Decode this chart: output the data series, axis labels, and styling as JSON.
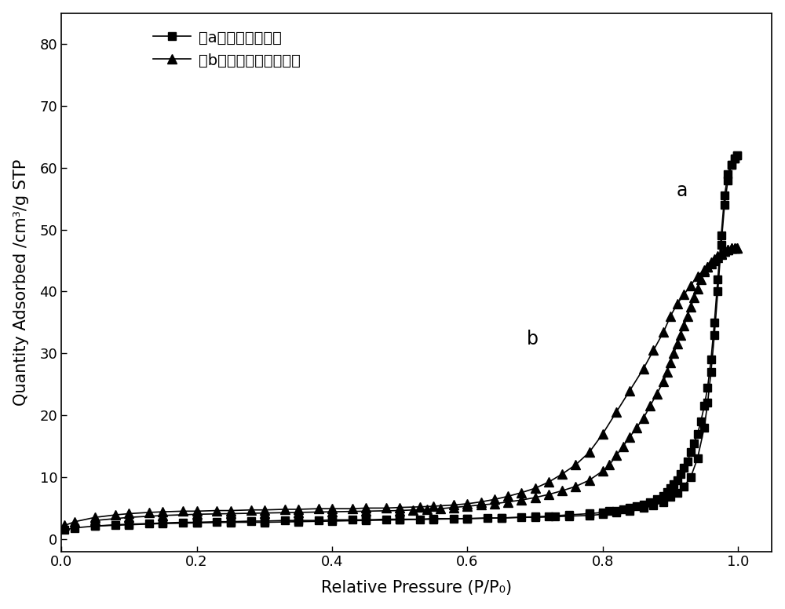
{
  "xlabel": "Relative Pressure (P/P₀)",
  "ylabel": "Quantity Adsorbed /cm³/g STP",
  "xlim": [
    0.0,
    1.05
  ],
  "ylim": [
    -2,
    85
  ],
  "xticks": [
    0.0,
    0.2,
    0.4,
    0.6,
    0.8,
    1.0
  ],
  "yticks": [
    0,
    10,
    20,
    30,
    40,
    50,
    60,
    70,
    80
  ],
  "legend_a": "（a）石墨相氮化碳",
  "legend_b": "（b）多孔石墨相氮化碳",
  "label_a": "a",
  "label_b": "b",
  "color": "#000000",
  "series_a_ads_x": [
    0.005,
    0.02,
    0.05,
    0.08,
    0.1,
    0.13,
    0.15,
    0.18,
    0.2,
    0.23,
    0.25,
    0.28,
    0.3,
    0.33,
    0.35,
    0.38,
    0.4,
    0.43,
    0.45,
    0.48,
    0.5,
    0.53,
    0.55,
    0.58,
    0.6,
    0.63,
    0.65,
    0.68,
    0.7,
    0.73,
    0.75,
    0.78,
    0.8,
    0.82,
    0.84,
    0.86,
    0.875,
    0.89,
    0.9,
    0.91,
    0.92,
    0.93,
    0.94,
    0.95,
    0.955,
    0.96,
    0.965,
    0.97,
    0.975,
    0.98,
    0.985,
    0.99,
    0.995,
    0.998
  ],
  "series_a_ads_y": [
    1.5,
    1.8,
    2.1,
    2.3,
    2.4,
    2.5,
    2.6,
    2.7,
    2.7,
    2.8,
    2.8,
    2.9,
    2.9,
    3.0,
    3.0,
    3.0,
    3.1,
    3.1,
    3.1,
    3.2,
    3.2,
    3.2,
    3.3,
    3.3,
    3.3,
    3.4,
    3.4,
    3.5,
    3.5,
    3.6,
    3.7,
    3.8,
    4.0,
    4.3,
    4.6,
    5.0,
    5.4,
    6.0,
    6.8,
    7.5,
    8.5,
    10.0,
    13.0,
    18.0,
    22.0,
    27.0,
    33.0,
    40.0,
    47.5,
    54.0,
    58.0,
    60.5,
    61.5,
    62.0
  ],
  "series_a_des_x": [
    0.998,
    0.995,
    0.99,
    0.985,
    0.98,
    0.975,
    0.97,
    0.965,
    0.96,
    0.955,
    0.95,
    0.945,
    0.94,
    0.935,
    0.93,
    0.925,
    0.92,
    0.915,
    0.91,
    0.905,
    0.9,
    0.895,
    0.89,
    0.88,
    0.87,
    0.86,
    0.85,
    0.84,
    0.83,
    0.82,
    0.81,
    0.8,
    0.78,
    0.75,
    0.72,
    0.7,
    0.65,
    0.6,
    0.55,
    0.5,
    0.45,
    0.4,
    0.35,
    0.3,
    0.25,
    0.2,
    0.15,
    0.1,
    0.05
  ],
  "series_a_des_y": [
    62.0,
    61.5,
    60.5,
    59.0,
    55.5,
    49.0,
    42.0,
    35.0,
    29.0,
    24.5,
    21.5,
    19.0,
    17.0,
    15.5,
    14.0,
    12.5,
    11.5,
    10.5,
    9.5,
    8.8,
    8.2,
    7.6,
    7.0,
    6.5,
    6.0,
    5.6,
    5.3,
    5.0,
    4.8,
    4.6,
    4.5,
    4.3,
    4.1,
    3.9,
    3.7,
    3.6,
    3.4,
    3.3,
    3.2,
    3.1,
    3.0,
    2.9,
    2.8,
    2.7,
    2.7,
    2.6,
    2.5,
    2.3,
    2.1
  ],
  "series_b_ads_x": [
    0.005,
    0.02,
    0.05,
    0.08,
    0.1,
    0.13,
    0.15,
    0.18,
    0.2,
    0.23,
    0.25,
    0.28,
    0.3,
    0.33,
    0.35,
    0.38,
    0.4,
    0.43,
    0.45,
    0.48,
    0.5,
    0.53,
    0.55,
    0.58,
    0.6,
    0.62,
    0.64,
    0.66,
    0.68,
    0.7,
    0.72,
    0.74,
    0.76,
    0.78,
    0.8,
    0.82,
    0.84,
    0.86,
    0.875,
    0.89,
    0.9,
    0.91,
    0.92,
    0.93,
    0.94,
    0.95,
    0.955,
    0.96,
    0.965,
    0.97,
    0.975,
    0.98,
    0.985,
    0.99,
    0.995,
    0.998
  ],
  "series_b_ads_y": [
    2.2,
    2.8,
    3.5,
    3.9,
    4.1,
    4.3,
    4.4,
    4.5,
    4.5,
    4.6,
    4.6,
    4.7,
    4.7,
    4.8,
    4.8,
    4.9,
    4.9,
    4.9,
    5.0,
    5.0,
    5.1,
    5.2,
    5.3,
    5.5,
    5.7,
    6.0,
    6.4,
    6.9,
    7.5,
    8.2,
    9.2,
    10.5,
    12.0,
    14.0,
    17.0,
    20.5,
    24.0,
    27.5,
    30.5,
    33.5,
    36.0,
    38.0,
    39.5,
    41.0,
    42.5,
    43.5,
    44.0,
    44.5,
    45.0,
    45.5,
    46.0,
    46.5,
    46.8,
    47.0,
    47.0,
    47.0
  ],
  "series_b_des_x": [
    0.998,
    0.995,
    0.99,
    0.985,
    0.98,
    0.975,
    0.97,
    0.965,
    0.96,
    0.955,
    0.95,
    0.945,
    0.94,
    0.935,
    0.93,
    0.925,
    0.92,
    0.915,
    0.91,
    0.905,
    0.9,
    0.895,
    0.89,
    0.88,
    0.87,
    0.86,
    0.85,
    0.84,
    0.83,
    0.82,
    0.81,
    0.8,
    0.78,
    0.76,
    0.74,
    0.72,
    0.7,
    0.68,
    0.66,
    0.64,
    0.62,
    0.6,
    0.58,
    0.56,
    0.54,
    0.52,
    0.5,
    0.45,
    0.4,
    0.35,
    0.3,
    0.25,
    0.2,
    0.15,
    0.1,
    0.05
  ],
  "series_b_des_y": [
    47.0,
    47.0,
    47.0,
    46.8,
    46.5,
    46.2,
    45.8,
    45.3,
    44.7,
    44.0,
    43.2,
    42.0,
    40.5,
    39.0,
    37.5,
    36.0,
    34.5,
    33.0,
    31.5,
    30.0,
    28.5,
    27.0,
    25.5,
    23.5,
    21.5,
    19.5,
    18.0,
    16.5,
    15.0,
    13.5,
    12.0,
    11.0,
    9.5,
    8.5,
    7.8,
    7.2,
    6.7,
    6.3,
    6.0,
    5.7,
    5.5,
    5.3,
    5.1,
    4.9,
    4.8,
    4.7,
    4.6,
    4.5,
    4.4,
    4.3,
    4.2,
    4.1,
    4.0,
    3.8,
    3.5,
    3.0
  ]
}
